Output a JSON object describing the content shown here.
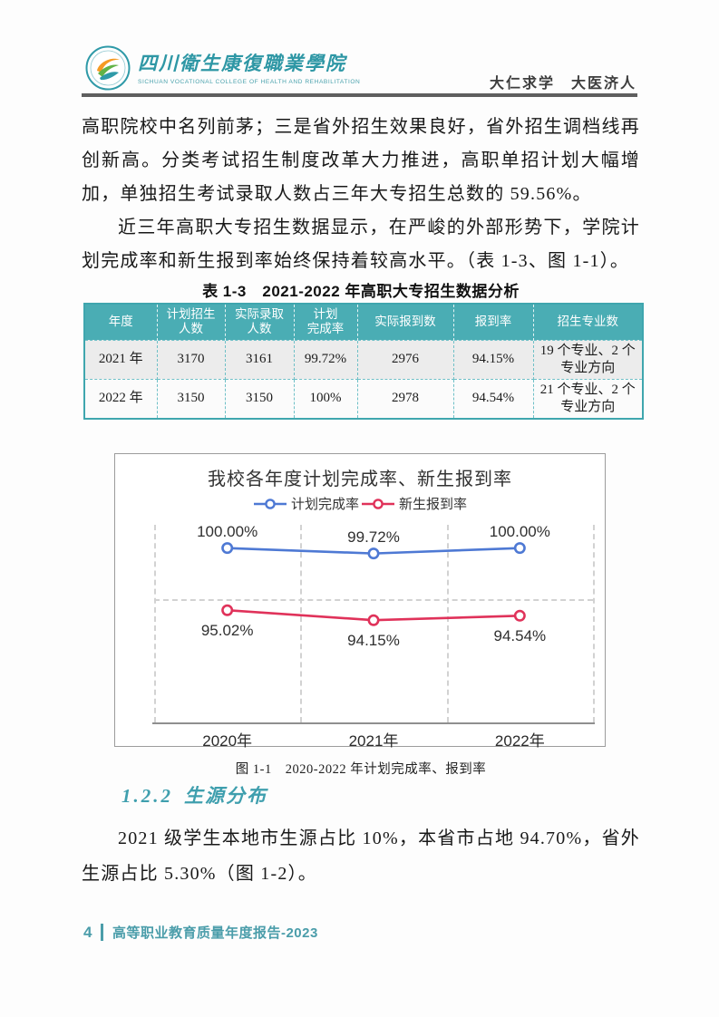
{
  "header": {
    "college_name_zh": "四川衛生康復職業學院",
    "college_name_en": "SICHUAN VOCATIONAL COLLEGE OF HEALTH AND REHABILITATION",
    "motto": "大仁求学　大医济人"
  },
  "paragraphs": {
    "p1": "高职院校中名列前茅；三是省外招生效果良好，省外招生调档线再创新高。分类考试招生制度改革大力推进，高职单招计划大幅增加，单独招生考试录取人数占三年大专招生总数的 59.56%。",
    "p2": "近三年高职大专招生数据显示，在严峻的外部形势下，学院计划完成率和新生报到率始终保持着较高水平。（表 1-3、图 1-1）。",
    "p3": "2021 级学生本地市生源占比 10%，本省市占地 94.70%，省外生源占比 5.30%（图 1-2）。"
  },
  "table": {
    "title": "表 1-3　2021-2022 年高职大专招生数据分析",
    "headers": [
      "年度",
      "计划招生\n人数",
      "实际录取\n人数",
      "计划\n完成率",
      "实际报到数",
      "报到率",
      "招生专业数"
    ],
    "rows": [
      [
        "2021 年",
        "3170",
        "3161",
        "99.72%",
        "2976",
        "94.15%",
        "19 个专业、2 个专业方向"
      ],
      [
        "2022 年",
        "3150",
        "3150",
        "100%",
        "2978",
        "94.54%",
        "21 个专业、2 个专业方向"
      ]
    ]
  },
  "chart_data": {
    "type": "line",
    "title": "我校各年度计划完成率、新生报到率",
    "categories": [
      "2020年",
      "2021年",
      "2022年"
    ],
    "series": [
      {
        "name": "计划完成率",
        "values": [
          100.0,
          99.72,
          100.0
        ],
        "labels": [
          "100.00%",
          "99.72%",
          "100.00%"
        ],
        "color": "#4e79d4",
        "axis": "primary"
      },
      {
        "name": "新生报到率",
        "values": [
          95.02,
          94.15,
          94.54
        ],
        "labels": [
          "95.02%",
          "94.15%",
          "94.54%"
        ],
        "color": "#e0325a",
        "axis": "secondary"
      }
    ],
    "ylim_primary": [
      91.0,
      101.2
    ],
    "ylim_secondary": [
      85.2,
      102.5
    ],
    "grid": "dashed",
    "legend_position": "top"
  },
  "figure_caption": "图 1-1　2020-2022 年计划完成率、报到率",
  "section": {
    "number": "1.2.2",
    "title": "生源分布"
  },
  "footer": {
    "page_number": "4",
    "text": "高等职业教育质量年度报告-2023"
  },
  "colors": {
    "accent_teal": "#4aadb4",
    "heading_teal": "#3f9fae",
    "footer_teal": "#4b9daa",
    "chart_blue": "#4e79d4",
    "chart_red": "#e0325a"
  }
}
